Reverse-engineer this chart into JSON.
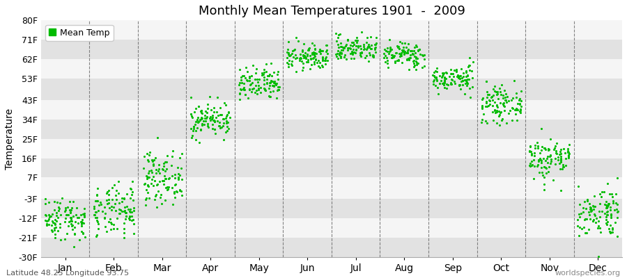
{
  "title": "Monthly Mean Temperatures 1901  -  2009",
  "ylabel": "Temperature",
  "bottom_left": "Latitude 48.25 Longitude 93.75",
  "bottom_right": "worldspecies.org",
  "legend_label": "Mean Temp",
  "dot_color": "#00bb00",
  "background_color": "#e8e8e8",
  "stripe_light": "#f5f5f5",
  "stripe_dark": "#e2e2e2",
  "yticks": [
    -30,
    -21,
    -12,
    -3,
    7,
    16,
    25,
    34,
    43,
    53,
    62,
    71,
    80
  ],
  "ytick_labels": [
    "-30F",
    "-21F",
    "-12F",
    "-3F",
    "7F",
    "16F",
    "25F",
    "34F",
    "43F",
    "53F",
    "62F",
    "71F",
    "80F"
  ],
  "months": [
    "Jan",
    "Feb",
    "Mar",
    "Apr",
    "May",
    "Jun",
    "Jul",
    "Aug",
    "Sep",
    "Oct",
    "Nov",
    "Dec"
  ],
  "mean_temps_F": [
    -12,
    -9,
    7,
    34,
    50,
    63,
    67,
    64,
    53,
    41,
    16,
    -9
  ],
  "std_temps_F": [
    5,
    6,
    6,
    4,
    4,
    3,
    3,
    3,
    3,
    4,
    5,
    6
  ],
  "n_years": 109,
  "ylim": [
    -30,
    80
  ],
  "fig_width": 9.0,
  "fig_height": 4.0,
  "dpi": 100
}
